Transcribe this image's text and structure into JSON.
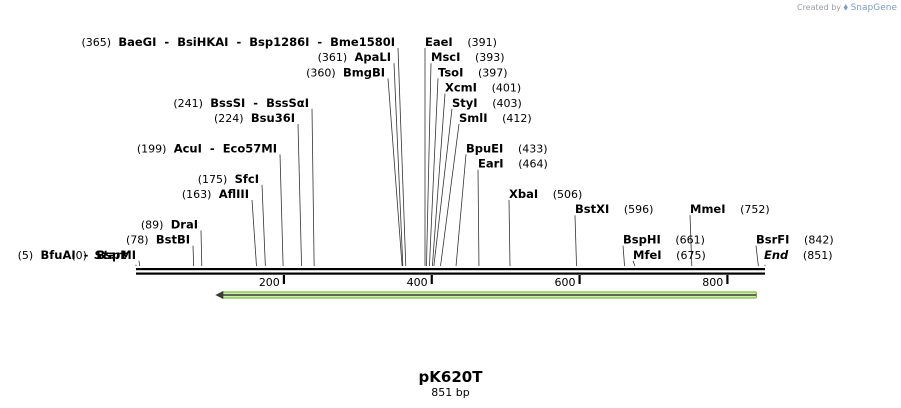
{
  "credit": {
    "prefix": "Created by",
    "logo_icon": "snapgene-logo-icon",
    "brand": "SnapGene"
  },
  "plasmid": {
    "name": "pK620T",
    "length_label": "851 bp",
    "length": 851
  },
  "axis": {
    "ticks": [
      200,
      400,
      600,
      800
    ]
  },
  "feature": {
    "name": "arrow-feature",
    "start": 110,
    "end": 842,
    "direction": "reverse",
    "fill": "#cdeeb0",
    "stroke": "#7fc241",
    "edge": "#3a3a3a"
  },
  "sites": [
    {
      "label": "(0)",
      "name": "Start",
      "italic": true,
      "pos": 0,
      "row": 14,
      "x": 0
    },
    {
      "label": "(5)",
      "name": "BfuAI  -  BspMI",
      "pos": 5,
      "row": 14,
      "x": 0
    },
    {
      "label": "(78)",
      "name": "BstBI",
      "pos": 78,
      "row": 13,
      "x": 0
    },
    {
      "label": "(89)",
      "name": "DraI",
      "pos": 89,
      "row": 12,
      "x": 0
    },
    {
      "label": "(163)",
      "name": "AflIII",
      "pos": 163,
      "row": 10,
      "x": 0
    },
    {
      "label": "(175)",
      "name": "SfcI",
      "pos": 175,
      "row": 9,
      "x": 0
    },
    {
      "label": "(199)",
      "name": "AcuI  -  Eco57MI",
      "pos": 199,
      "row": 7,
      "x": 0
    },
    {
      "label": "(224)",
      "name": "Bsu36I",
      "pos": 224,
      "row": 5,
      "x": 0
    },
    {
      "label": "(241)",
      "name": "BssSI  -  BssSαI",
      "pos": 241,
      "row": 4,
      "x": 0
    },
    {
      "label": "(360)",
      "name": "BmgBI",
      "pos": 360,
      "row": 2,
      "x": 0
    },
    {
      "label": "(361)",
      "name": "ApaLI",
      "pos": 361,
      "row": 1,
      "x": 0
    },
    {
      "label": "(365)",
      "name": "BaeGI  -  BsiHKAI  -  Bsp1286I  -  Bme1580I",
      "pos": 365,
      "row": 0,
      "x": 0
    },
    {
      "label": "(391)",
      "name": "EaeI",
      "pos": 391,
      "row": 0,
      "x": 425
    },
    {
      "label": "(393)",
      "name": "MscI",
      "pos": 393,
      "row": 1,
      "x": 431
    },
    {
      "label": "(397)",
      "name": "TsoI",
      "pos": 397,
      "row": 2,
      "x": 438
    },
    {
      "label": "(401)",
      "name": "XcmI",
      "pos": 401,
      "row": 3,
      "x": 445
    },
    {
      "label": "(403)",
      "name": "StyI",
      "pos": 403,
      "row": 4,
      "x": 452
    },
    {
      "label": "(412)",
      "name": "SmlI",
      "pos": 412,
      "row": 5,
      "x": 459
    },
    {
      "label": "(433)",
      "name": "BpuEI",
      "pos": 433,
      "row": 7,
      "x": 466
    },
    {
      "label": "(464)",
      "name": "EarI",
      "pos": 464,
      "row": 8,
      "x": 0
    },
    {
      "label": "(506)",
      "name": "XbaI",
      "pos": 506,
      "row": 10,
      "x": 0
    },
    {
      "label": "(596)",
      "name": "BstXI",
      "pos": 596,
      "row": 11,
      "x": 0
    },
    {
      "label": "(661)",
      "name": "BspHI",
      "pos": 661,
      "row": 13,
      "x": 0
    },
    {
      "label": "(675)",
      "name": "MfeI",
      "pos": 675,
      "row": 14,
      "x": 0
    },
    {
      "label": "(752)",
      "name": "MmeI",
      "pos": 752,
      "row": 11,
      "x": 0
    },
    {
      "label": "(842)",
      "name": "BsrFI",
      "pos": 842,
      "row": 13,
      "x": 0
    },
    {
      "label": "(851)",
      "name": "End",
      "italic": true,
      "pos": 851,
      "row": 14,
      "x": 0
    }
  ]
}
